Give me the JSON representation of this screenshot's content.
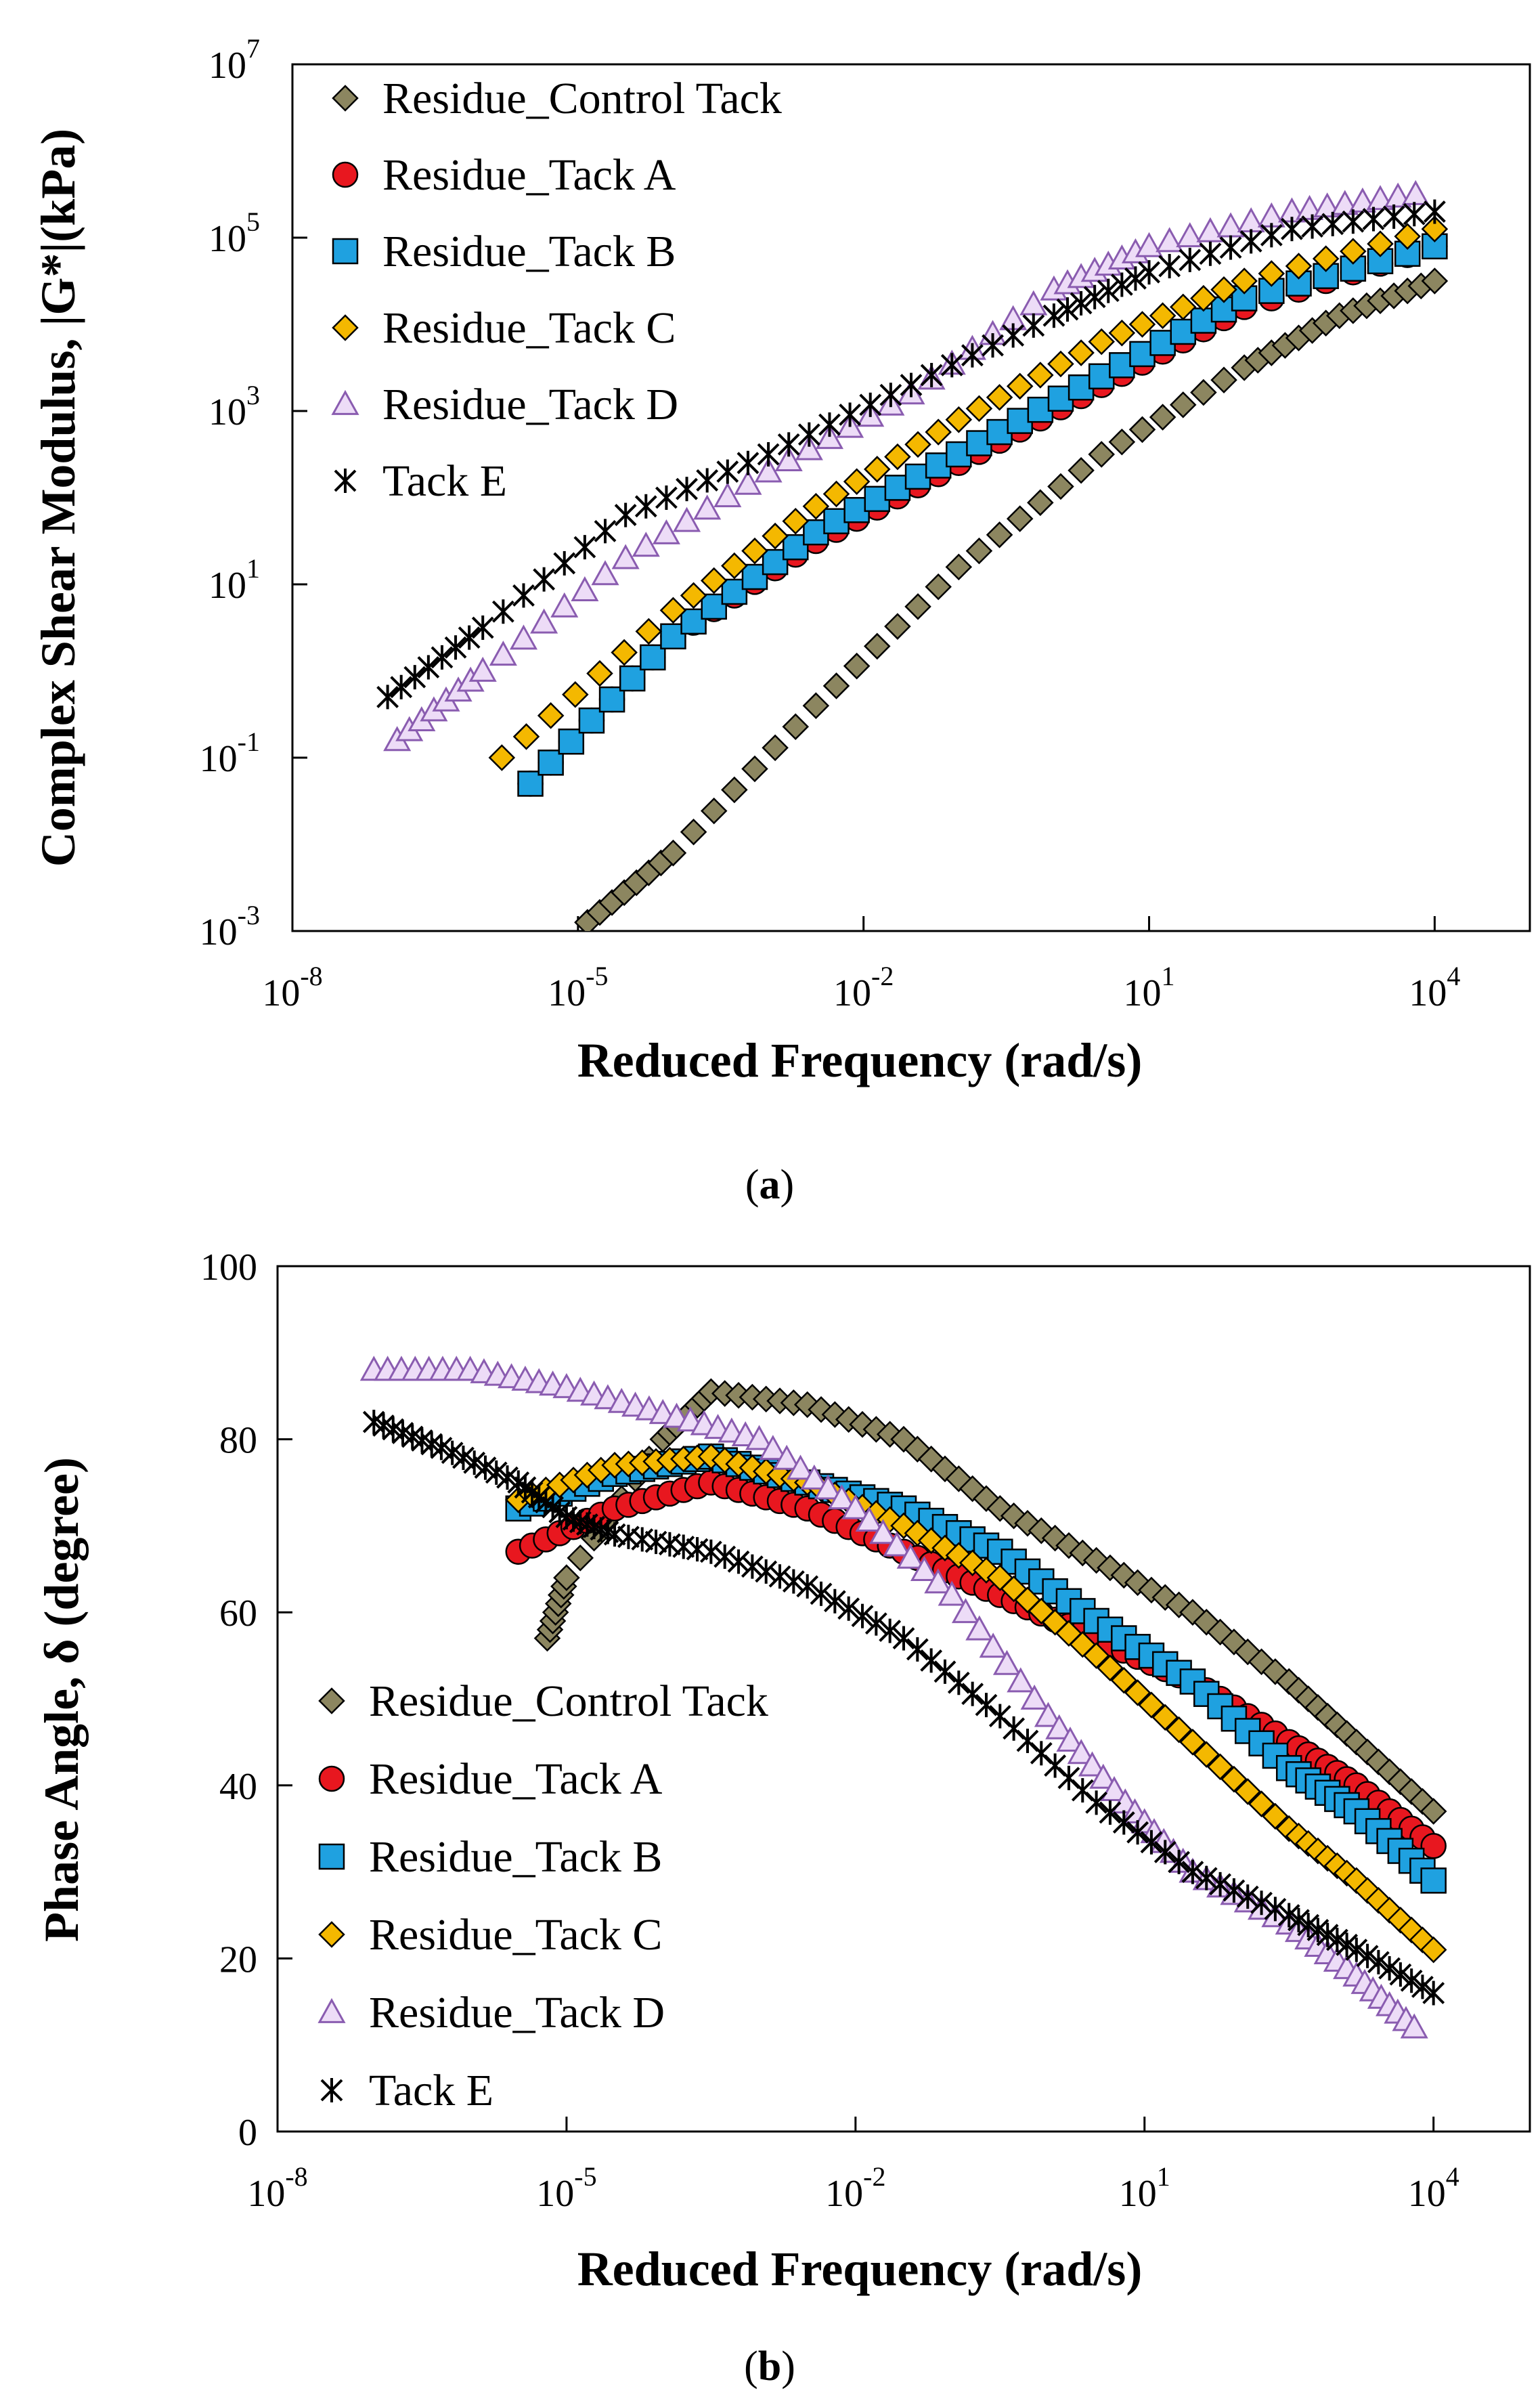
{
  "chart_data": [
    {
      "type": "scatter",
      "panel": "a",
      "caption_label": "a",
      "xlabel": "Reduced Frequency (rad/s)",
      "ylabel": "Complex Shear Modulus, |G*|(kPa)",
      "xscale": "log",
      "yscale": "log",
      "xlim_exp": [
        -8,
        5
      ],
      "ylim_exp": [
        -3,
        7
      ],
      "x_ticks": [
        {
          "base": "10",
          "exp": "-8",
          "v": -8
        },
        {
          "base": "10",
          "exp": "-5",
          "v": -5
        },
        {
          "base": "10",
          "exp": "-2",
          "v": -2
        },
        {
          "base": "10",
          "exp": "1",
          "v": 1
        },
        {
          "base": "10",
          "exp": "4",
          "v": 4
        }
      ],
      "y_ticks": [
        {
          "base": "10",
          "exp": "-3",
          "v": -3
        },
        {
          "base": "10",
          "exp": "-1",
          "v": -1
        },
        {
          "base": "10",
          "exp": "1",
          "v": 1
        },
        {
          "base": "10",
          "exp": "3",
          "v": 3
        },
        {
          "base": "10",
          "exp": "5",
          "v": 5
        },
        {
          "base": "10",
          "exp": "7",
          "v": 7
        }
      ],
      "legend_position": "top-left",
      "note": "Series values are log10(x) and log10(|G*|) read at key points along each master curve.",
      "series": [
        {
          "name": "Residue_Control Tack",
          "marker": "diamond",
          "color": "#8c8660",
          "points": [
            [
              -4.9,
              -2.9
            ],
            [
              -4,
              -2.1
            ],
            [
              -2.5,
              -0.4
            ],
            [
              -1,
              1.2
            ],
            [
              0.5,
              2.5
            ],
            [
              2,
              3.5
            ],
            [
              3,
              4.1
            ],
            [
              4,
              4.5
            ]
          ]
        },
        {
          "name": "Residue_Tack A",
          "marker": "circle",
          "color": "#e8171f",
          "points": [
            [
              -5.5,
              -1.3
            ],
            [
              -4,
              0.4
            ],
            [
              -2.5,
              1.5
            ],
            [
              -1,
              2.4
            ],
            [
              0.5,
              3.3
            ],
            [
              2,
              4.2
            ],
            [
              4,
              4.9
            ]
          ]
        },
        {
          "name": "Residue_Tack B",
          "marker": "square",
          "color": "#1fa1e0",
          "points": [
            [
              -5.5,
              -1.3
            ],
            [
              -4,
              0.4
            ],
            [
              -2.5,
              1.6
            ],
            [
              -1,
              2.5
            ],
            [
              0.5,
              3.4
            ],
            [
              2,
              4.3
            ],
            [
              4,
              4.9
            ]
          ]
        },
        {
          "name": "Residue_Tack C",
          "marker": "diamond",
          "color": "#f4b800",
          "points": [
            [
              -5.8,
              -1
            ],
            [
              -4,
              0.7
            ],
            [
              -2.5,
              1.9
            ],
            [
              -1,
              2.9
            ],
            [
              0.5,
              3.8
            ],
            [
              2,
              4.5
            ],
            [
              4,
              5.1
            ]
          ]
        },
        {
          "name": "Residue_Tack D",
          "marker": "triangle",
          "color": "#c9a6e2",
          "points": [
            [
              -6.9,
              -0.8
            ],
            [
              -6,
              0
            ],
            [
              -4.5,
              1.3
            ],
            [
              -3,
              2.3
            ],
            [
              -1.5,
              3.2
            ],
            [
              0,
              4.4
            ],
            [
              1,
              4.9
            ],
            [
              2.5,
              5.3
            ],
            [
              3.8,
              5.5
            ]
          ]
        },
        {
          "name": "Tack E",
          "marker": "asterisk",
          "color": "#000000",
          "points": [
            [
              -7,
              -0.3
            ],
            [
              -6,
              0.5
            ],
            [
              -4.5,
              1.8
            ],
            [
              -3,
              2.5
            ],
            [
              -1.5,
              3.3
            ],
            [
              0,
              4.1
            ],
            [
              1,
              4.6
            ],
            [
              2.5,
              5.1
            ],
            [
              4,
              5.3
            ]
          ]
        }
      ]
    },
    {
      "type": "scatter",
      "panel": "b",
      "caption_label": "b",
      "xlabel": "Reduced Frequency (rad/s)",
      "ylabel": "Phase Angle, δ (degree)",
      "xscale": "log",
      "yscale": "linear",
      "xlim_exp": [
        -8,
        5
      ],
      "ylim": [
        0,
        100
      ],
      "x_ticks": [
        {
          "base": "10",
          "exp": "-8",
          "v": -8
        },
        {
          "base": "10",
          "exp": "-5",
          "v": -5
        },
        {
          "base": "10",
          "exp": "-2",
          "v": -2
        },
        {
          "base": "10",
          "exp": "1",
          "v": 1
        },
        {
          "base": "10",
          "exp": "4",
          "v": 4
        }
      ],
      "y_ticks": [
        {
          "label": "0",
          "v": 0
        },
        {
          "label": "20",
          "v": 20
        },
        {
          "label": "40",
          "v": 40
        },
        {
          "label": "60",
          "v": 60
        },
        {
          "label": "80",
          "v": 80
        },
        {
          "label": "100",
          "v": 100
        }
      ],
      "legend_position": "bottom-left",
      "note": "Series values are log10(x) and phase angle (degrees) read at key points.",
      "series": [
        {
          "name": "Residue_Control Tack",
          "marker": "diamond",
          "color": "#8c8660",
          "points": [
            [
              -5.2,
              57
            ],
            [
              -5,
              64
            ],
            [
              -4,
              80
            ],
            [
              -3.5,
              85.5
            ],
            [
              -2.5,
              84
            ],
            [
              -1.5,
              80
            ],
            [
              -0.5,
              72
            ],
            [
              0.5,
              66
            ],
            [
              1.5,
              60
            ],
            [
              2.5,
              52
            ],
            [
              3.2,
              45
            ],
            [
              4,
              37
            ]
          ]
        },
        {
          "name": "Residue_Tack A",
          "marker": "circle",
          "color": "#e8171f",
          "points": [
            [
              -5.5,
              67
            ],
            [
              -4.5,
              72
            ],
            [
              -3.5,
              75
            ],
            [
              -2.5,
              72
            ],
            [
              -1.5,
              67
            ],
            [
              -0.5,
              62
            ],
            [
              0.5,
              57
            ],
            [
              1.5,
              52
            ],
            [
              2.5,
              45
            ],
            [
              3.2,
              40
            ],
            [
              4,
              33
            ]
          ]
        },
        {
          "name": "Residue_Tack B",
          "marker": "square",
          "color": "#1fa1e0",
          "points": [
            [
              -5.5,
              72
            ],
            [
              -4.5,
              76
            ],
            [
              -3.5,
              78
            ],
            [
              -2.5,
              75
            ],
            [
              -1.5,
              72
            ],
            [
              -0.5,
              67
            ],
            [
              0.5,
              59
            ],
            [
              1.5,
              52
            ],
            [
              2.5,
              42
            ],
            [
              3.2,
              37
            ],
            [
              4,
              29
            ]
          ]
        },
        {
          "name": "Residue_Tack C",
          "marker": "diamond",
          "color": "#f4b800",
          "points": [
            [
              -5.5,
              73
            ],
            [
              -4.5,
              77
            ],
            [
              -3.5,
              78
            ],
            [
              -2.5,
              75
            ],
            [
              -1.5,
              70
            ],
            [
              -0.5,
              64
            ],
            [
              0.5,
              55
            ],
            [
              1.5,
              45
            ],
            [
              2.5,
              35
            ],
            [
              3.2,
              29
            ],
            [
              4,
              21
            ]
          ]
        },
        {
          "name": "Residue_Tack D",
          "marker": "triangle",
          "color": "#c9a6e2",
          "points": [
            [
              -7,
              88
            ],
            [
              -6,
              88
            ],
            [
              -5,
              86
            ],
            [
              -4,
              83
            ],
            [
              -3,
              80
            ],
            [
              -2,
              72
            ],
            [
              -1,
              62
            ],
            [
              0,
              48
            ],
            [
              0.8,
              38
            ],
            [
              1.5,
              30
            ],
            [
              2.5,
              24
            ],
            [
              3.2,
              18
            ],
            [
              3.8,
              12
            ]
          ]
        },
        {
          "name": "Tack E",
          "marker": "asterisk",
          "color": "#000000",
          "points": [
            [
              -7,
              82
            ],
            [
              -6.3,
              79
            ],
            [
              -5.5,
              75
            ],
            [
              -5,
              71
            ],
            [
              -4.5,
              69
            ],
            [
              -3.5,
              67
            ],
            [
              -2.5,
              63
            ],
            [
              -1.5,
              57
            ],
            [
              -0.5,
              48
            ],
            [
              0.5,
              38
            ],
            [
              1.5,
              30
            ],
            [
              2.5,
              25
            ],
            [
              3.2,
              21
            ],
            [
              4,
              16
            ]
          ]
        }
      ]
    }
  ]
}
